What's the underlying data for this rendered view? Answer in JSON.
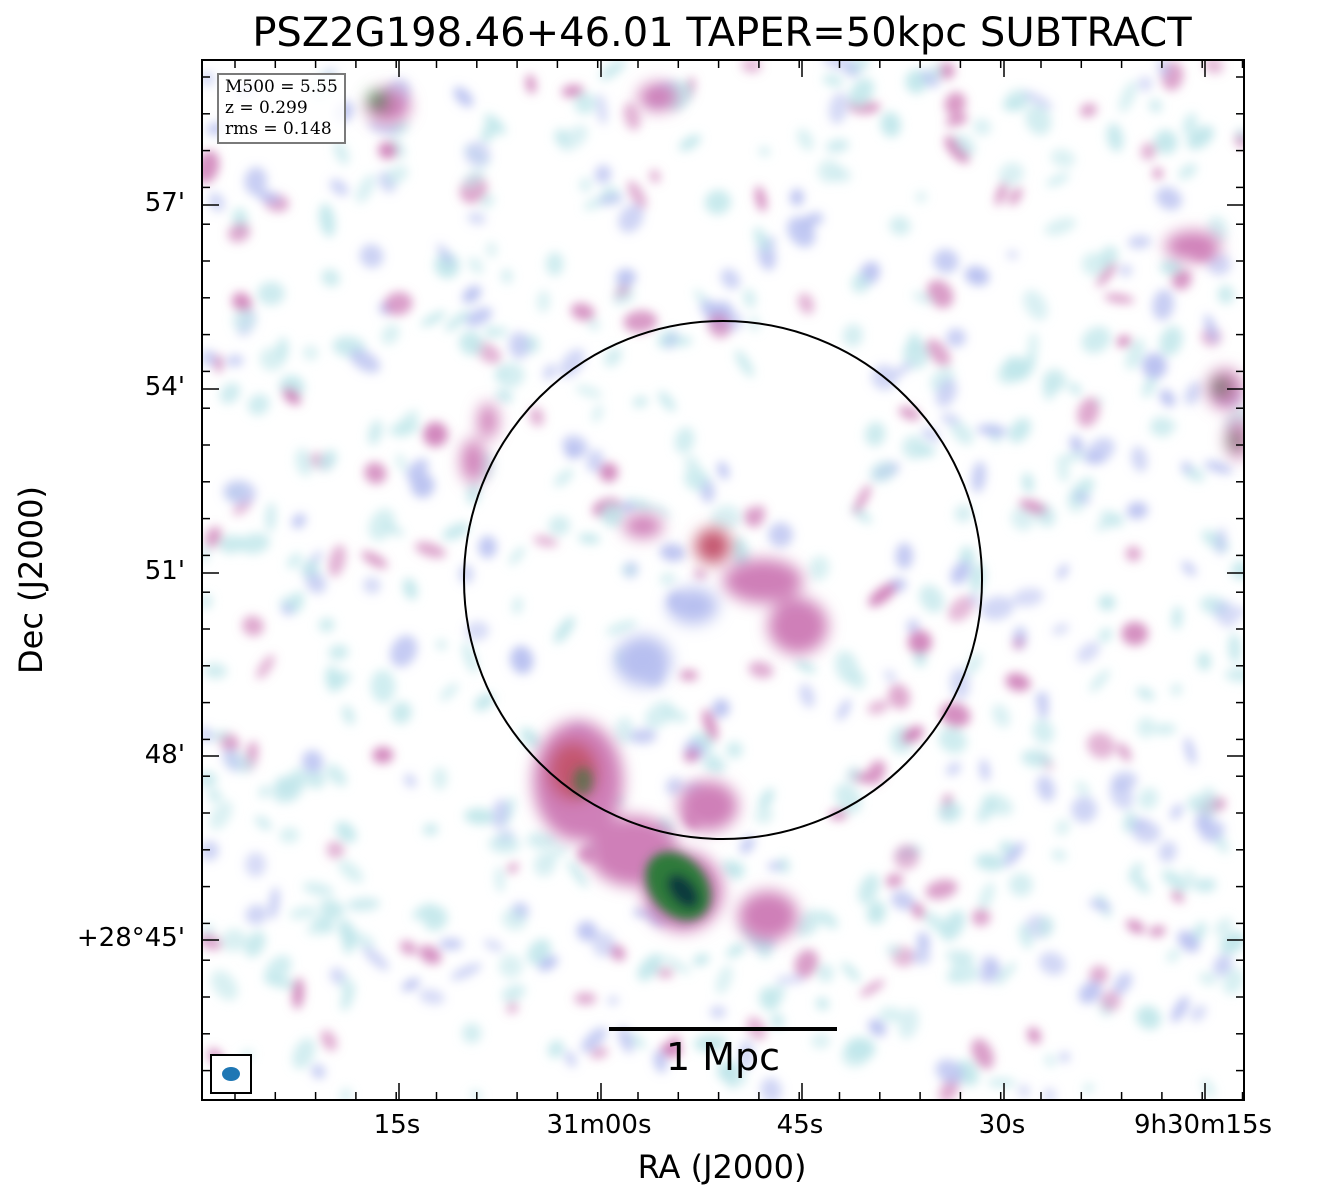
{
  "title": "PSZ2G198.46+46.01 TAPER=50kpc SUBTRACT",
  "axes": {
    "xlabel": "RA (J2000)",
    "ylabel": "Dec (J2000)",
    "x_ticks": [
      "15s",
      "31m00s",
      "45s",
      "30s",
      "9h30m15s"
    ],
    "y_ticks": [
      "57'",
      "54'",
      "51'",
      "48'",
      "+28°45'"
    ]
  },
  "info": {
    "m500": "M500 = 5.55",
    "z": "z = 0.299",
    "rms": "rms = 0.148"
  },
  "scalebar_label": "1 Mpc",
  "colors": {
    "weak": "#bfe6ea",
    "low": "#b7bff0",
    "mid": "#cf7fb8",
    "high": "#c4566f",
    "peak": "#2f7a3a",
    "core": "#0f3b3c",
    "beam": "#1f77b4"
  }
}
